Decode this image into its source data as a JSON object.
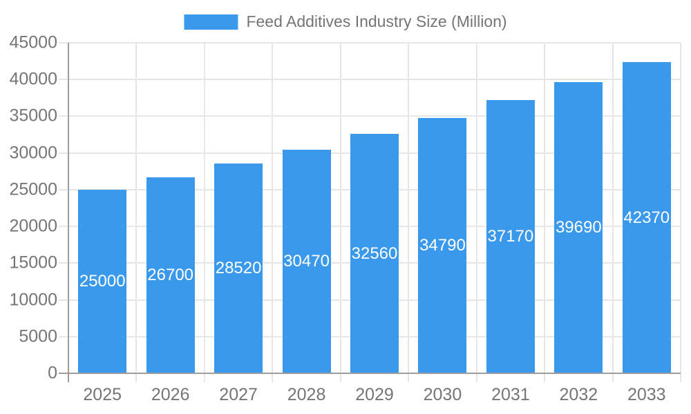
{
  "chart_data": {
    "type": "bar",
    "title": "",
    "legend": "Feed Additives Industry Size (Million)",
    "legend_position": "top",
    "categories": [
      "2025",
      "2026",
      "2027",
      "2028",
      "2029",
      "2030",
      "2031",
      "2032",
      "2033"
    ],
    "values": [
      25000,
      26700,
      28520,
      30470,
      32560,
      34790,
      37170,
      39690,
      42370
    ],
    "xlabel": "",
    "ylabel": "",
    "ylim": [
      0,
      45000
    ],
    "ytick_step": 5000,
    "yticks": [
      0,
      5000,
      10000,
      15000,
      20000,
      25000,
      30000,
      35000,
      40000,
      45000
    ],
    "grid": true,
    "value_labels_inside_bars": true,
    "colors": {
      "bar": "#3B99EC",
      "bar_label": "#FFFFFF",
      "axis_text": "#757575",
      "grid": "#E6E6E6",
      "axis_line": "#9E9E9E",
      "background": "#FFFFFF"
    }
  }
}
